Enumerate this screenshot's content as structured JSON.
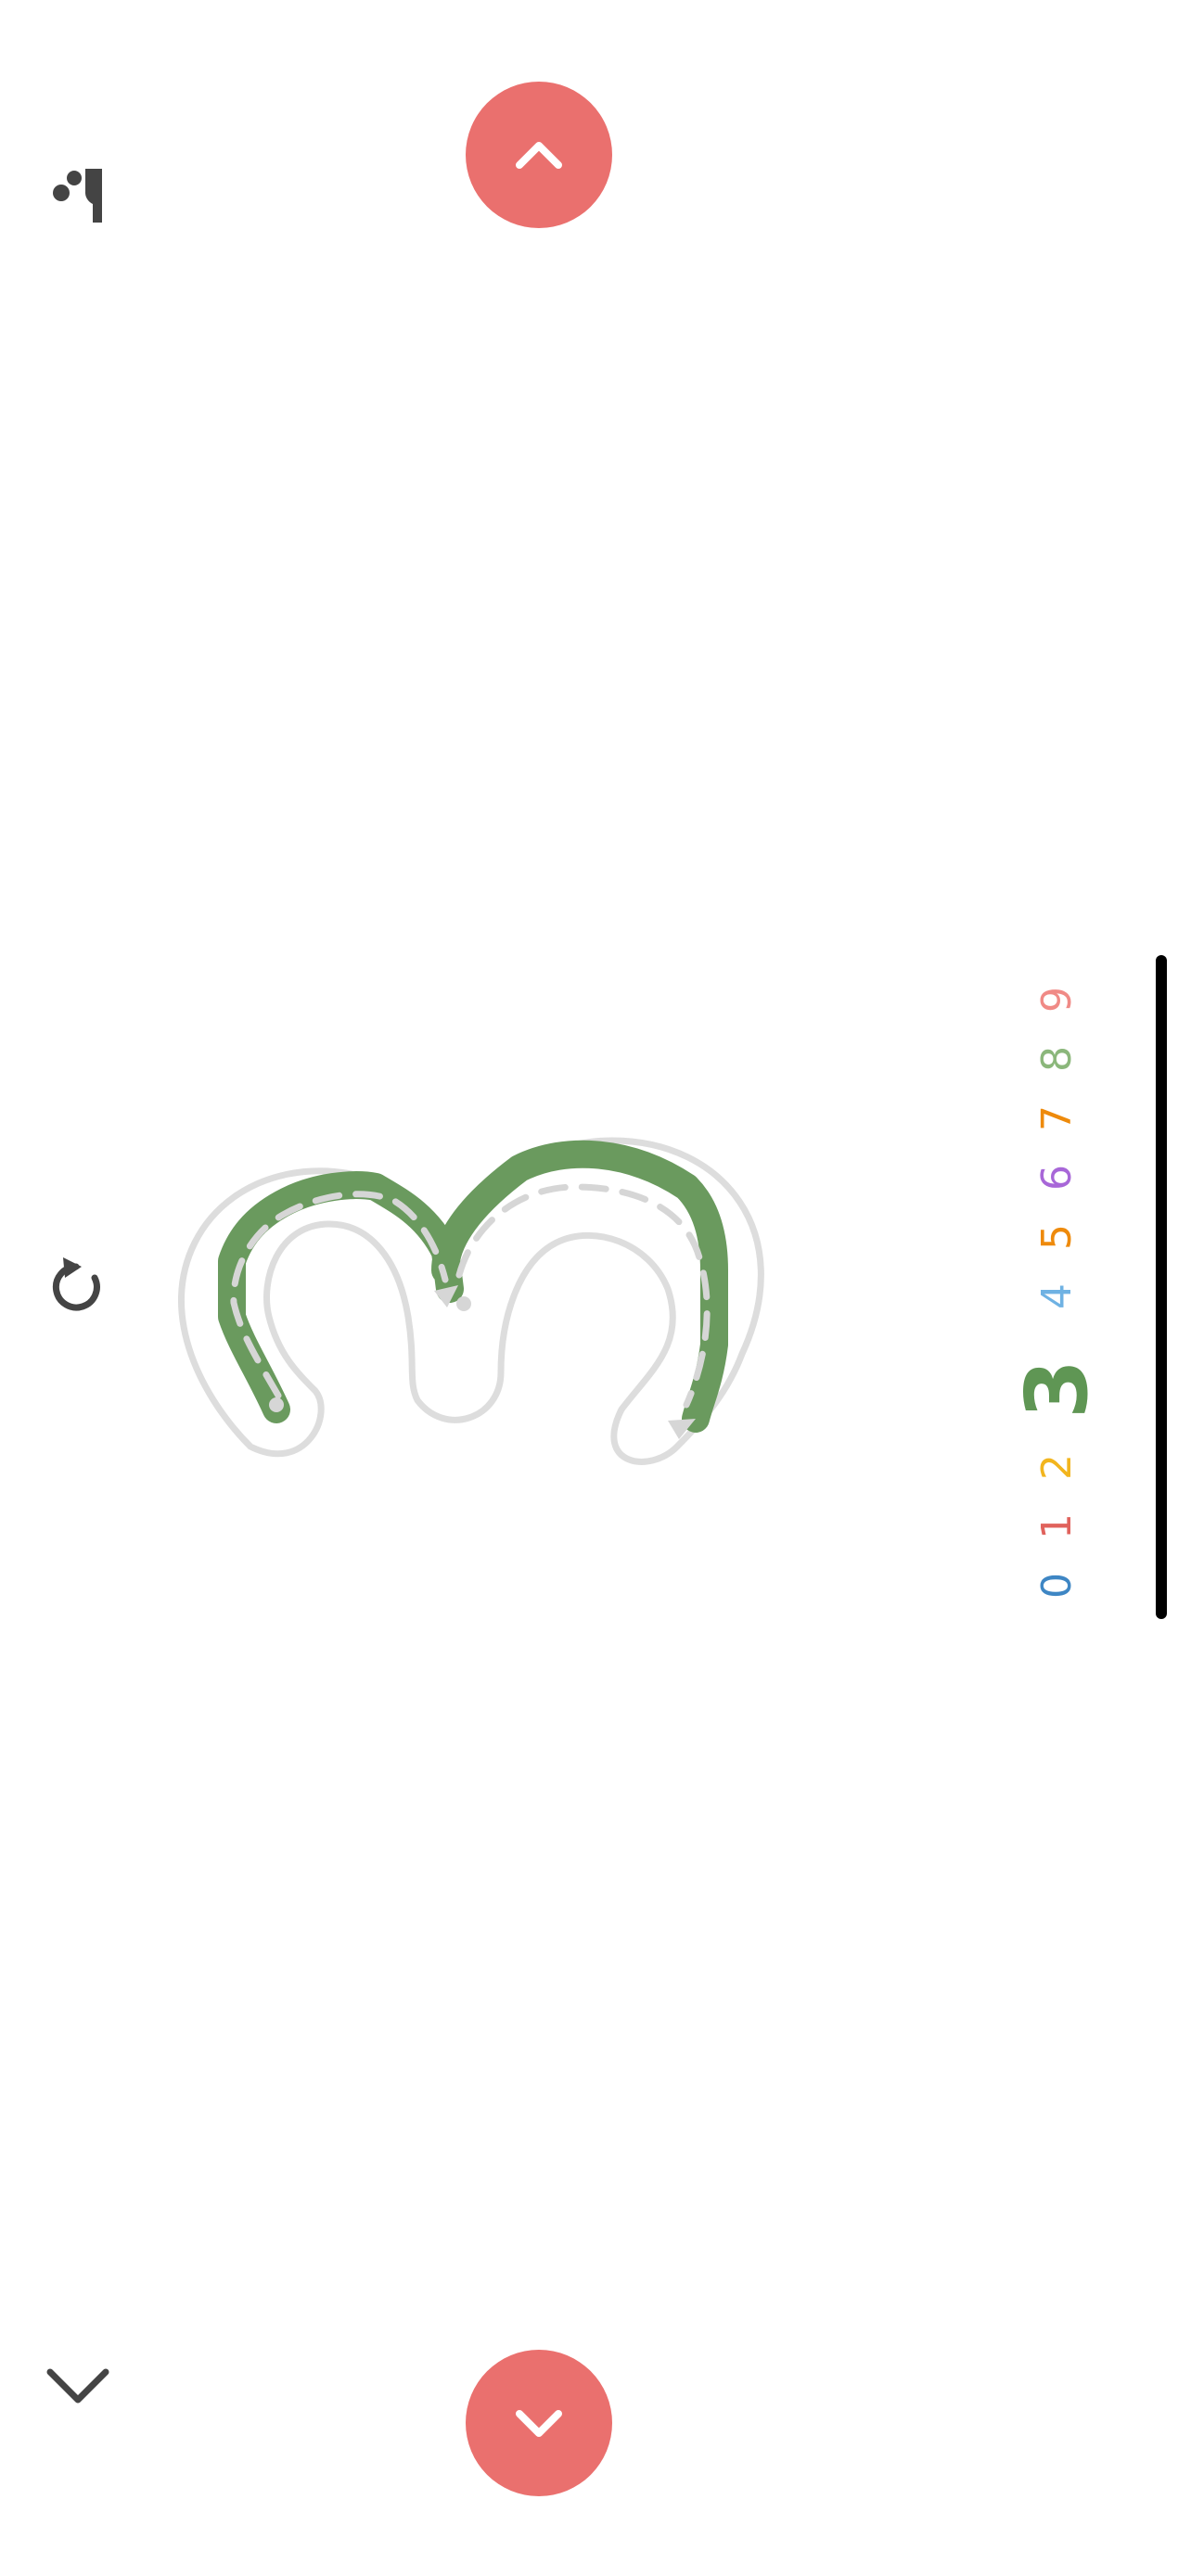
{
  "navigation": {
    "prev_icon": "chevron-up-icon",
    "next_icon": "chevron-down-icon",
    "button_color": "#ea706e"
  },
  "side_icons": {
    "top": "mascot-icon",
    "middle": "replay-icon",
    "bottom": "chevron-down-icon",
    "color": "#444444"
  },
  "digits": {
    "items": [
      {
        "label": "0",
        "color": "#3e86c4"
      },
      {
        "label": "1",
        "color": "#e0625c"
      },
      {
        "label": "2",
        "color": "#f2b51e"
      },
      {
        "label": "3",
        "color": "#5f9654"
      },
      {
        "label": "4",
        "color": "#6fb2e3"
      },
      {
        "label": "5",
        "color": "#ee8a0b"
      },
      {
        "label": "6",
        "color": "#a867d8"
      },
      {
        "label": "7",
        "color": "#ee8a0b"
      },
      {
        "label": "8",
        "color": "#8bb77b"
      },
      {
        "label": "9",
        "color": "#f08a86"
      }
    ],
    "selected": "3"
  },
  "trace": {
    "stroke_color": "#6a9a5e",
    "outline_color": "#dddddd",
    "guide_color": "#d6d6d6"
  }
}
